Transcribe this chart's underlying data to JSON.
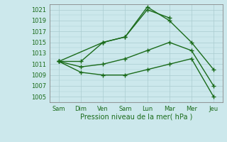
{
  "title": "",
  "xlabel": "Pression niveau de la mer( hPa )",
  "x_labels": [
    "Sam",
    "Dim",
    "Ven",
    "Sam",
    "Lun",
    "Mar",
    "Mer",
    "Jeu"
  ],
  "x_positions": [
    0,
    1,
    2,
    3,
    4,
    5,
    6,
    7
  ],
  "ylim": [
    1004,
    1022
  ],
  "yticks": [
    1005,
    1007,
    1009,
    1011,
    1013,
    1015,
    1017,
    1019,
    1021
  ],
  "bg_color": "#cce8ec",
  "line_color": "#1a6b1a",
  "grid_color": "#aaccd0",
  "line1": [
    1011.5,
    1011.5,
    1015.0,
    1016.0,
    1021.0,
    1019.5,
    null,
    null
  ],
  "line2": [
    1011.5,
    null,
    1015.0,
    1016.0,
    1021.5,
    1019.0,
    1015.0,
    1010.0
  ],
  "line3": [
    1011.5,
    1010.5,
    1011.0,
    1012.0,
    1013.5,
    1015.0,
    1013.5,
    1007.0
  ],
  "line4": [
    1011.5,
    1009.5,
    1009.0,
    1009.0,
    1010.0,
    1011.0,
    1012.0,
    1005.0
  ],
  "marker": "+",
  "linewidth": 1.0,
  "markersize": 4,
  "figsize": [
    3.2,
    2.0
  ],
  "dpi": 100
}
